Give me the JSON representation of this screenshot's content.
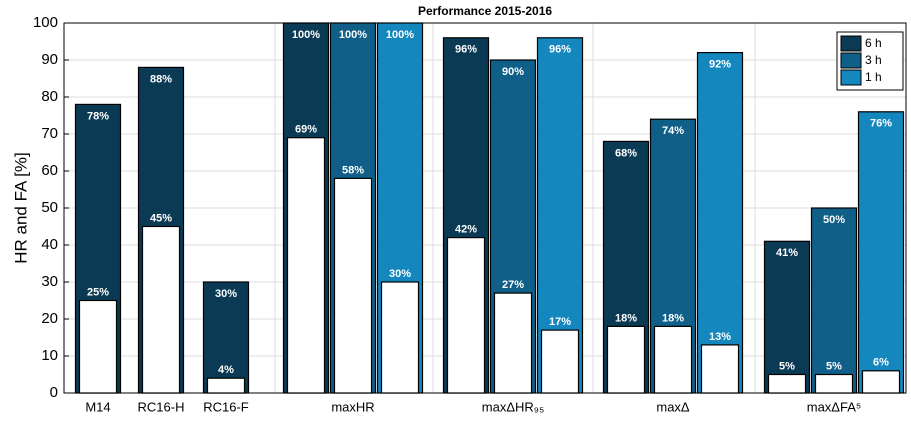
{
  "chart_data": {
    "type": "bar",
    "title": "Performance 2015-2016",
    "y_label": "HR and FA [%]",
    "categories": [
      "M14",
      "RC16-H",
      "RC16-F",
      "maxHR",
      "maxΔHR₉₅",
      "maxΔ",
      "maxΔFA⁵"
    ],
    "series": [
      {
        "name": "6 h",
        "color": "#0b3a55",
        "values": [
          78,
          88,
          30,
          100,
          96,
          68,
          41
        ],
        "value_labels": [
          "78%",
          "88%",
          "30%",
          "100%",
          "96%",
          "68%",
          "41%"
        ],
        "fa_values": [
          25,
          45,
          4,
          69,
          42,
          18,
          5
        ],
        "fa_value_labels": [
          "25%",
          "45%",
          "4%",
          "69%",
          "42%",
          "18%",
          "5%"
        ]
      },
      {
        "name": "3 h",
        "color": "#0f5f88",
        "values": [
          null,
          null,
          null,
          100,
          90,
          74,
          50
        ],
        "value_labels": [
          null,
          null,
          null,
          "100%",
          "90%",
          "74%",
          "50%"
        ],
        "fa_values": [
          null,
          null,
          null,
          58,
          27,
          18,
          5
        ],
        "fa_value_labels": [
          null,
          null,
          null,
          "58%",
          "27%",
          "18%",
          "5%"
        ]
      },
      {
        "name": "1 h",
        "color": "#1487bf",
        "values": [
          null,
          null,
          null,
          100,
          96,
          92,
          76
        ],
        "value_labels": [
          null,
          null,
          null,
          "100%",
          "96%",
          "92%",
          "76%"
        ],
        "fa_values": [
          null,
          null,
          null,
          30,
          17,
          13,
          6
        ],
        "fa_value_labels": [
          null,
          null,
          null,
          "30%",
          "17%",
          "13%",
          "6%"
        ]
      }
    ],
    "ylim": [
      0,
      100
    ],
    "yticks": [
      0,
      10,
      20,
      30,
      40,
      50,
      60,
      70,
      80,
      90,
      100
    ],
    "grid": true,
    "legend": "upper right"
  }
}
